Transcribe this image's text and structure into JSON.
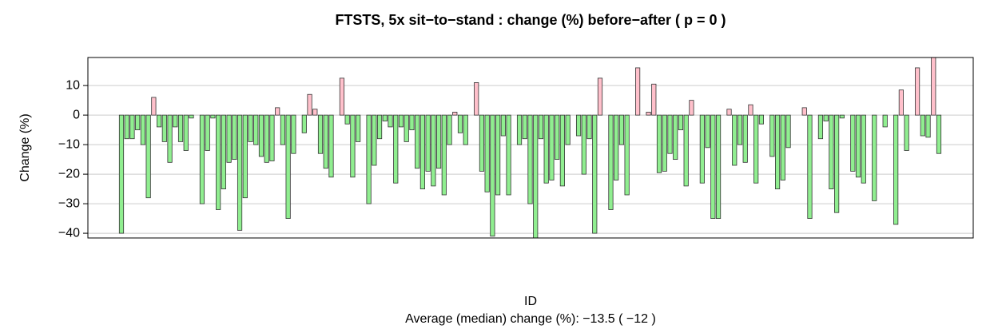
{
  "chart_data": {
    "type": "bar",
    "title": "FTSTS, 5x sit−to−stand : change (%) before−after ( p =  0 )",
    "x_label": "ID",
    "y_label": "Change (%)",
    "footnote": "Average (median) change (%): −13.5 ( −12 )",
    "positive_color": "#ffc0cb",
    "negative_color": "#90ee90",
    "ylim": [
      -41.6,
      19.5
    ],
    "yticks": [
      {
        "value": -40,
        "label": "−40"
      },
      {
        "value": -30,
        "label": "−30"
      },
      {
        "value": -20,
        "label": "−20"
      },
      {
        "value": -10,
        "label": "−10"
      },
      0,
      10
    ],
    "grid": true,
    "values": [
      -40,
      -8,
      -8,
      -5,
      -10,
      -28,
      6,
      -4,
      -9,
      -16,
      -4,
      -9,
      -12,
      -1,
      0,
      -30,
      -12,
      -1,
      -32,
      -25,
      -16,
      -15,
      -39,
      -28,
      -9,
      -10,
      -14,
      -16,
      -15.5,
      2.5,
      -10,
      -35,
      -13,
      0,
      -6,
      7,
      2,
      -13,
      -18,
      -21,
      0,
      12.5,
      -3,
      -21,
      -9,
      0,
      -30,
      -17,
      -8,
      -2,
      -4,
      -23,
      -4,
      -9,
      -5,
      -18,
      -25,
      -19,
      -24,
      -18,
      -27,
      -10,
      1,
      -6,
      -10,
      0,
      11,
      -19,
      -26,
      -41,
      -27,
      -7,
      -27,
      0,
      -10,
      -8,
      -30,
      -42,
      -8,
      -23,
      -22,
      -15,
      -24,
      -10,
      0,
      -7,
      -20,
      -8,
      -40,
      12.5,
      0,
      -32,
      -22,
      -10,
      -27,
      0,
      16,
      0,
      1,
      10.5,
      -19.5,
      -19,
      -13,
      -15,
      -5,
      -24,
      5,
      0,
      -23,
      -11,
      -35,
      -35,
      0,
      2,
      -17,
      -10,
      -16,
      3.5,
      -23,
      -3,
      0,
      -14,
      -25,
      -22,
      -11,
      0,
      0,
      2.5,
      -35,
      0,
      -8,
      -2,
      -25,
      -33,
      -1,
      0,
      -19,
      -21,
      -23,
      0,
      -29,
      0,
      -4,
      0,
      -37,
      8.5,
      -12,
      0,
      16,
      -7,
      -7.5,
      20,
      -13
    ]
  }
}
